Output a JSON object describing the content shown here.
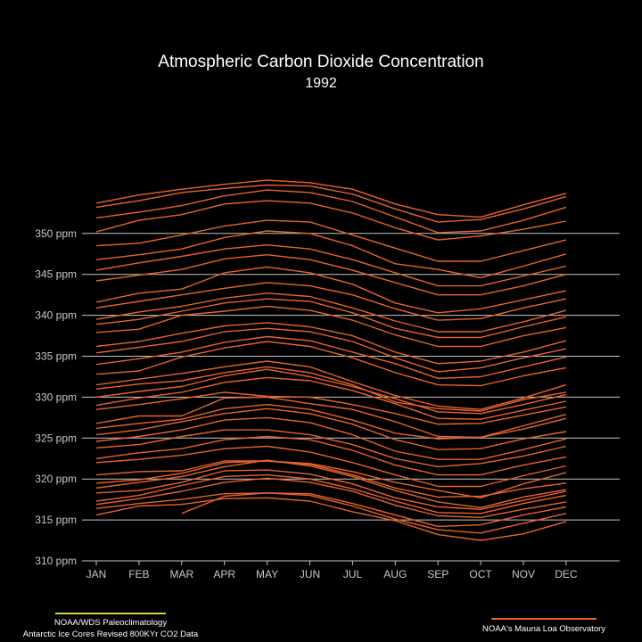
{
  "chart_data": {
    "type": "line",
    "title": "Atmospheric Carbon Dioxide Concentration",
    "subtitle": "1992",
    "x": [
      "JAN",
      "FEB",
      "MAR",
      "APR",
      "MAY",
      "JUN",
      "JUL",
      "AUG",
      "SEP",
      "OCT",
      "NOV",
      "DEC"
    ],
    "ylim": [
      310,
      356
    ],
    "y_ticks": [
      310,
      315,
      320,
      325,
      330,
      335,
      340,
      345,
      350
    ],
    "y_tick_labels": [
      "310 ppm",
      "315 ppm",
      "320 ppm",
      "325 ppm",
      "330 ppm",
      "335 ppm",
      "340 ppm",
      "345 ppm",
      "350 ppm"
    ],
    "y_gridlines": [
      315,
      320,
      325,
      330,
      335,
      340,
      345,
      350
    ],
    "grid": true,
    "line_color": "#e8642a",
    "series": [
      {
        "values": [
          315.6,
          316.7,
          316.9,
          317.6,
          317.7,
          317.3,
          316.0,
          314.9,
          313.2,
          312.5,
          313.3,
          314.8
        ]
      },
      {
        "values": [
          316.4,
          317.0,
          317.5,
          318.2,
          318.3,
          318.0,
          316.7,
          315.1,
          313.8,
          313.4,
          314.6,
          315.8
        ]
      },
      {
        "values": [
          null,
          null,
          315.8,
          317.9,
          318.3,
          318.2,
          317.0,
          315.6,
          314.2,
          314.4,
          315.6,
          316.6
        ]
      },
      {
        "values": [
          316.9,
          317.6,
          318.5,
          319.6,
          320.1,
          319.6,
          318.5,
          316.8,
          315.5,
          315.3,
          316.3,
          317.2
        ]
      },
      {
        "values": [
          317.3,
          318.0,
          319.2,
          320.3,
          320.5,
          320.0,
          318.8,
          317.3,
          315.9,
          315.8,
          317.0,
          318.0
        ]
      },
      {
        "values": [
          318.3,
          318.6,
          319.6,
          321.0,
          321.1,
          320.6,
          319.4,
          317.7,
          316.6,
          316.3,
          317.4,
          318.5
        ]
      },
      {
        "values": [
          318.9,
          319.6,
          320.3,
          321.5,
          322.3,
          321.6,
          320.3,
          318.6,
          317.2,
          316.5,
          317.8,
          318.7
        ]
      },
      {
        "values": [
          319.5,
          319.9,
          320.7,
          322.0,
          322.2,
          321.8,
          320.5,
          318.9,
          317.8,
          317.9,
          318.8,
          319.5
        ]
      },
      {
        "values": [
          320.5,
          320.9,
          321.0,
          322.2,
          322.2,
          321.9,
          320.9,
          319.6,
          318.6,
          317.7,
          319.4,
          320.8
        ]
      },
      {
        "values": [
          322.0,
          322.4,
          322.9,
          323.7,
          324.0,
          323.3,
          322.0,
          320.5,
          319.1,
          319.1,
          320.4,
          321.6
        ]
      },
      {
        "values": [
          322.5,
          323.2,
          323.7,
          324.8,
          325.2,
          324.8,
          323.5,
          321.7,
          320.5,
          320.5,
          321.7,
          322.7
        ]
      },
      {
        "values": [
          323.8,
          324.2,
          325.2,
          326.0,
          326.0,
          325.4,
          324.2,
          322.5,
          321.5,
          321.9,
          322.8,
          324.0
        ]
      },
      {
        "values": [
          324.6,
          325.2,
          326.0,
          327.2,
          327.5,
          326.9,
          325.4,
          323.4,
          322.4,
          322.4,
          323.6,
          324.9
        ]
      },
      {
        "values": [
          325.4,
          326.0,
          327.0,
          328.0,
          328.6,
          328.0,
          326.7,
          324.8,
          323.6,
          323.7,
          324.9,
          325.8
        ]
      },
      {
        "values": [
          326.2,
          326.8,
          327.3,
          328.6,
          329.1,
          328.5,
          327.2,
          325.6,
          324.9,
          325.1,
          326.1,
          327.4
        ]
      },
      {
        "values": [
          326.8,
          327.7,
          327.7,
          329.9,
          330.0,
          329.2,
          328.5,
          327.0,
          325.2,
          325.1,
          326.5,
          327.9
        ]
      },
      {
        "values": [
          328.5,
          329.1,
          329.8,
          330.6,
          330.1,
          330.0,
          329.1,
          328.0,
          326.7,
          326.8,
          327.8,
          328.8
        ]
      },
      {
        "values": [
          329.0,
          329.9,
          330.6,
          331.8,
          332.4,
          332.0,
          330.8,
          329.2,
          327.4,
          327.3,
          328.4,
          329.5
        ]
      },
      {
        "values": [
          330.0,
          330.7,
          331.3,
          332.6,
          333.4,
          332.5,
          331.3,
          329.8,
          328.2,
          328.0,
          329.1,
          330.3
        ]
      },
      {
        "values": [
          331.0,
          331.6,
          332.0,
          333.0,
          333.7,
          333.0,
          331.5,
          329.4,
          328.6,
          328.3,
          329.7,
          330.6
        ]
      },
      {
        "values": [
          331.5,
          332.2,
          332.9,
          333.7,
          334.4,
          333.7,
          331.9,
          330.2,
          328.9,
          328.5,
          329.9,
          331.5
        ]
      },
      {
        "values": [
          332.8,
          333.2,
          334.9,
          336.0,
          336.8,
          336.2,
          334.8,
          333.0,
          331.5,
          331.4,
          332.6,
          333.6
        ]
      },
      {
        "values": [
          334.0,
          334.7,
          335.5,
          336.7,
          337.4,
          336.9,
          335.5,
          334.1,
          332.3,
          332.5,
          333.7,
          334.9
        ]
      },
      {
        "values": [
          335.4,
          336.1,
          336.8,
          338.0,
          338.4,
          338.0,
          336.8,
          334.8,
          333.1,
          333.6,
          334.8,
          335.9
        ]
      },
      {
        "values": [
          336.2,
          336.8,
          337.8,
          338.7,
          339.1,
          338.6,
          337.5,
          335.5,
          334.1,
          334.4,
          335.5,
          336.9
        ]
      },
      {
        "values": [
          337.9,
          338.3,
          340.0,
          340.5,
          341.1,
          340.6,
          339.4,
          337.6,
          336.2,
          336.2,
          337.5,
          338.5
        ]
      },
      {
        "values": [
          338.9,
          339.5,
          340.5,
          341.5,
          342.0,
          341.7,
          340.3,
          338.4,
          337.3,
          337.3,
          338.6,
          339.8
        ]
      },
      {
        "values": [
          339.5,
          340.4,
          341.1,
          342.1,
          342.7,
          342.3,
          340.9,
          339.3,
          338.0,
          338.0,
          339.2,
          340.6
        ]
      },
      {
        "values": [
          340.9,
          341.7,
          342.5,
          343.3,
          344.0,
          343.6,
          342.5,
          340.8,
          339.4,
          339.6,
          340.9,
          342.0
        ]
      },
      {
        "values": [
          341.6,
          342.7,
          343.2,
          345.2,
          345.9,
          345.2,
          343.8,
          341.5,
          340.3,
          340.8,
          341.9,
          343.0
        ]
      },
      {
        "values": [
          344.2,
          344.9,
          345.6,
          346.9,
          347.4,
          346.8,
          345.5,
          344.0,
          342.5,
          342.5,
          343.6,
          345.0
        ]
      },
      {
        "values": [
          345.5,
          346.4,
          347.2,
          348.1,
          348.6,
          348.1,
          346.8,
          345.2,
          343.6,
          343.6,
          344.8,
          346.0
        ]
      },
      {
        "values": [
          346.8,
          347.4,
          348.1,
          349.5,
          350.3,
          350.0,
          348.5,
          346.3,
          345.6,
          344.6,
          346.0,
          347.5
        ]
      },
      {
        "values": [
          348.5,
          348.8,
          349.8,
          350.9,
          351.6,
          351.4,
          349.8,
          348.2,
          346.6,
          346.6,
          347.9,
          349.2
        ]
      },
      {
        "values": [
          350.2,
          351.6,
          352.3,
          353.6,
          354.0,
          353.7,
          352.5,
          350.7,
          349.2,
          349.7,
          350.5,
          351.5
        ]
      },
      {
        "values": [
          351.9,
          352.6,
          353.4,
          354.6,
          355.3,
          355.0,
          353.9,
          352.0,
          350.1,
          350.3,
          351.6,
          353.2
        ]
      },
      {
        "values": [
          353.2,
          354.0,
          355.0,
          355.5,
          355.9,
          355.8,
          354.8,
          353.0,
          351.4,
          351.7,
          353.0,
          354.5
        ]
      },
      {
        "values": [
          353.7,
          354.7,
          355.4,
          356.0,
          356.5,
          356.2,
          355.4,
          353.6,
          352.3,
          352.0,
          353.5,
          354.9
        ]
      }
    ],
    "legend": [
      {
        "label_line1": "NOAA/WDS Paleoclimatology",
        "label_line2": "Antarctic Ice Cores Revised 800KYr CO2 Data",
        "color": "#d8d23a",
        "position": "bottom-left"
      },
      {
        "label_line1": "NOAA's Mauna Loa Observatory",
        "color": "#e8642a",
        "position": "bottom-right"
      }
    ]
  }
}
